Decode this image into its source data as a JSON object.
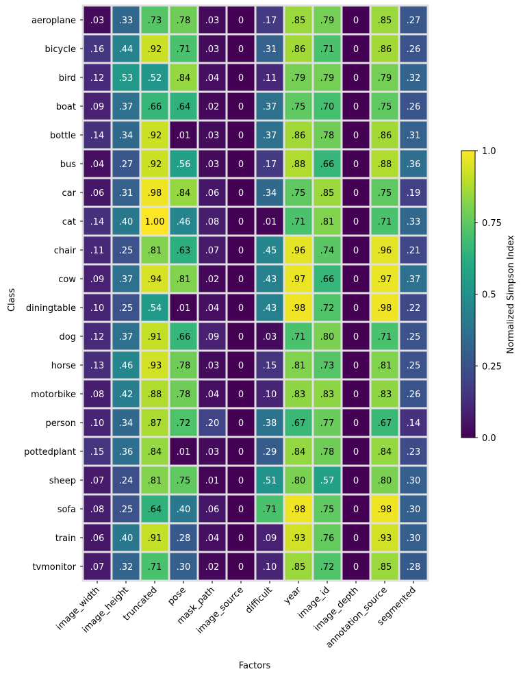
{
  "chart_data": {
    "type": "heatmap",
    "title": "",
    "xlabel": "Factors",
    "ylabel": "Class",
    "x_categories": [
      "image_width",
      "image_height",
      "truncated",
      "pose",
      "mask_path",
      "image_source",
      "difficult",
      "year",
      "image_id",
      "image_depth",
      "annotation_source",
      "segmented"
    ],
    "y_categories": [
      "aeroplane",
      "bicycle",
      "bird",
      "boat",
      "bottle",
      "bus",
      "car",
      "cat",
      "chair",
      "cow",
      "diningtable",
      "dog",
      "horse",
      "motorbike",
      "person",
      "pottedplant",
      "sheep",
      "sofa",
      "train",
      "tvmonitor"
    ],
    "values": [
      [
        0.03,
        0.33,
        0.73,
        0.78,
        0.03,
        0,
        0.17,
        0.85,
        0.79,
        0,
        0.85,
        0.27
      ],
      [
        0.16,
        0.44,
        0.92,
        0.71,
        0.03,
        0,
        0.31,
        0.86,
        0.71,
        0,
        0.86,
        0.26
      ],
      [
        0.12,
        0.53,
        0.52,
        0.84,
        0.04,
        0,
        0.11,
        0.79,
        0.79,
        0,
        0.79,
        0.32
      ],
      [
        0.09,
        0.37,
        0.66,
        0.64,
        0.02,
        0,
        0.37,
        0.75,
        0.7,
        0,
        0.75,
        0.26
      ],
      [
        0.14,
        0.34,
        0.92,
        0.01,
        0.03,
        0,
        0.37,
        0.86,
        0.78,
        0,
        0.86,
        0.31
      ],
      [
        0.04,
        0.27,
        0.92,
        0.56,
        0.03,
        0,
        0.17,
        0.88,
        0.66,
        0,
        0.88,
        0.36
      ],
      [
        0.06,
        0.31,
        0.98,
        0.84,
        0.06,
        0,
        0.34,
        0.75,
        0.85,
        0,
        0.75,
        0.19
      ],
      [
        0.14,
        0.4,
        1.0,
        0.46,
        0.08,
        0,
        0.01,
        0.71,
        0.81,
        0,
        0.71,
        0.33
      ],
      [
        0.11,
        0.25,
        0.81,
        0.63,
        0.07,
        0,
        0.45,
        0.96,
        0.74,
        0,
        0.96,
        0.21
      ],
      [
        0.09,
        0.37,
        0.94,
        0.81,
        0.02,
        0,
        0.43,
        0.97,
        0.66,
        0,
        0.97,
        0.37
      ],
      [
        0.1,
        0.25,
        0.54,
        0.01,
        0.04,
        0,
        0.43,
        0.98,
        0.72,
        0,
        0.98,
        0.22
      ],
      [
        0.12,
        0.37,
        0.91,
        0.66,
        0.09,
        0,
        0.03,
        0.71,
        0.8,
        0,
        0.71,
        0.25
      ],
      [
        0.13,
        0.46,
        0.93,
        0.78,
        0.03,
        0,
        0.15,
        0.81,
        0.73,
        0,
        0.81,
        0.25
      ],
      [
        0.08,
        0.42,
        0.88,
        0.78,
        0.04,
        0,
        0.1,
        0.83,
        0.83,
        0,
        0.83,
        0.26
      ],
      [
        0.1,
        0.34,
        0.87,
        0.72,
        0.2,
        0,
        0.38,
        0.67,
        0.77,
        0,
        0.67,
        0.14
      ],
      [
        0.15,
        0.36,
        0.84,
        0.01,
        0.03,
        0,
        0.29,
        0.84,
        0.78,
        0,
        0.84,
        0.23
      ],
      [
        0.07,
        0.24,
        0.81,
        0.75,
        0.01,
        0,
        0.51,
        0.8,
        0.57,
        0,
        0.8,
        0.3
      ],
      [
        0.08,
        0.25,
        0.64,
        0.4,
        0.06,
        0,
        0.71,
        0.98,
        0.75,
        0,
        0.98,
        0.3
      ],
      [
        0.06,
        0.4,
        0.91,
        0.28,
        0.04,
        0,
        0.09,
        0.93,
        0.76,
        0,
        0.93,
        0.3
      ],
      [
        0.07,
        0.32,
        0.71,
        0.3,
        0.02,
        0,
        0.1,
        0.85,
        0.72,
        0,
        0.85,
        0.28
      ]
    ],
    "cell_labels": [
      [
        ".03",
        ".33",
        ".73",
        ".78",
        ".03",
        "0",
        ".17",
        ".85",
        ".79",
        "0",
        ".85",
        ".27"
      ],
      [
        ".16",
        ".44",
        ".92",
        ".71",
        ".03",
        "0",
        ".31",
        ".86",
        ".71",
        "0",
        ".86",
        ".26"
      ],
      [
        ".12",
        ".53",
        ".52",
        ".84",
        ".04",
        "0",
        ".11",
        ".79",
        ".79",
        "0",
        ".79",
        ".32"
      ],
      [
        ".09",
        ".37",
        ".66",
        ".64",
        ".02",
        "0",
        ".37",
        ".75",
        ".70",
        "0",
        ".75",
        ".26"
      ],
      [
        ".14",
        ".34",
        ".92",
        ".01",
        ".03",
        "0",
        ".37",
        ".86",
        ".78",
        "0",
        ".86",
        ".31"
      ],
      [
        ".04",
        ".27",
        ".92",
        ".56",
        ".03",
        "0",
        ".17",
        ".88",
        ".66",
        "0",
        ".88",
        ".36"
      ],
      [
        ".06",
        ".31",
        ".98",
        ".84",
        ".06",
        "0",
        ".34",
        ".75",
        ".85",
        "0",
        ".75",
        ".19"
      ],
      [
        ".14",
        ".40",
        "1.00",
        ".46",
        ".08",
        "0",
        ".01",
        ".71",
        ".81",
        "0",
        ".71",
        ".33"
      ],
      [
        ".11",
        ".25",
        ".81",
        ".63",
        ".07",
        "0",
        ".45",
        ".96",
        ".74",
        "0",
        ".96",
        ".21"
      ],
      [
        ".09",
        ".37",
        ".94",
        ".81",
        ".02",
        "0",
        ".43",
        ".97",
        ".66",
        "0",
        ".97",
        ".37"
      ],
      [
        ".10",
        ".25",
        ".54",
        ".01",
        ".04",
        "0",
        ".43",
        ".98",
        ".72",
        "0",
        ".98",
        ".22"
      ],
      [
        ".12",
        ".37",
        ".91",
        ".66",
        ".09",
        "0",
        ".03",
        ".71",
        ".80",
        "0",
        ".71",
        ".25"
      ],
      [
        ".13",
        ".46",
        ".93",
        ".78",
        ".03",
        "0",
        ".15",
        ".81",
        ".73",
        "0",
        ".81",
        ".25"
      ],
      [
        ".08",
        ".42",
        ".88",
        ".78",
        ".04",
        "0",
        ".10",
        ".83",
        ".83",
        "0",
        ".83",
        ".26"
      ],
      [
        ".10",
        ".34",
        ".87",
        ".72",
        ".20",
        "0",
        ".38",
        ".67",
        ".77",
        "0",
        ".67",
        ".14"
      ],
      [
        ".15",
        ".36",
        ".84",
        ".01",
        ".03",
        "0",
        ".29",
        ".84",
        ".78",
        "0",
        ".84",
        ".23"
      ],
      [
        ".07",
        ".24",
        ".81",
        ".75",
        ".01",
        "0",
        ".51",
        ".80",
        ".57",
        "0",
        ".80",
        ".30"
      ],
      [
        ".08",
        ".25",
        ".64",
        ".40",
        ".06",
        "0",
        ".71",
        ".98",
        ".75",
        "0",
        ".98",
        ".30"
      ],
      [
        ".06",
        ".40",
        ".91",
        ".28",
        ".04",
        "0",
        ".09",
        ".93",
        ".76",
        "0",
        ".93",
        ".30"
      ],
      [
        ".07",
        ".32",
        ".71",
        ".30",
        ".02",
        "0",
        ".10",
        ".85",
        ".72",
        "0",
        ".85",
        ".28"
      ]
    ],
    "colorbar": {
      "label": "Normalized Simpson Index",
      "range": [
        0,
        1
      ],
      "ticks": [
        0,
        0.25,
        0.5,
        0.75,
        1
      ],
      "tick_labels": [
        "0.0",
        "0.25",
        "0.5",
        "0.75",
        "1.0"
      ],
      "colormap": "viridis",
      "placement": "right"
    },
    "cell_border_color": "#e0e0e0"
  }
}
